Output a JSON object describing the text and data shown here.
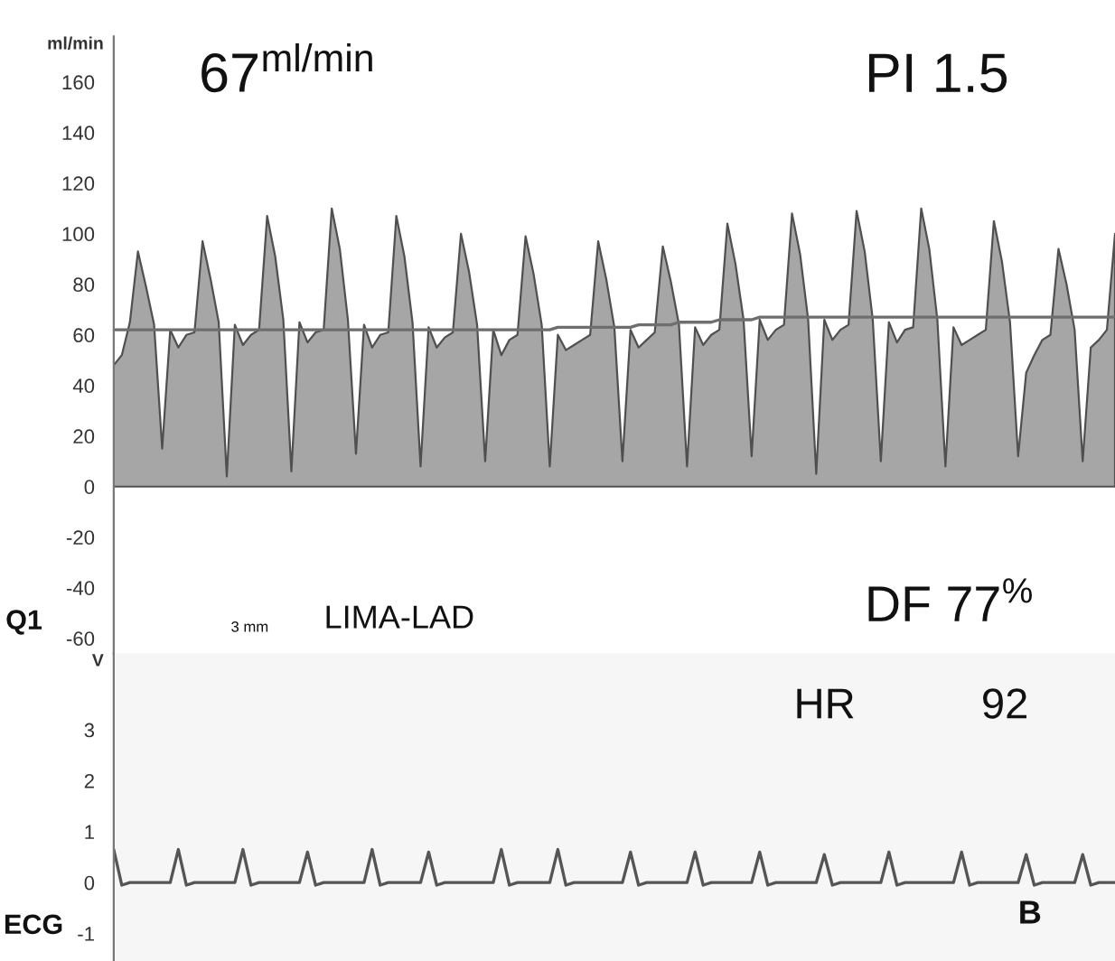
{
  "chart_data": [
    {
      "type": "area",
      "ylabel": "ml/min",
      "annotations": [
        "67$^{ml/min}$",
        "PI 1.5",
        "Q1",
        "3 mm",
        "LIMA-LAD",
        "DF 77$^{%}$"
      ],
      "categories": [
        null,
        null,
        null,
        null,
        null,
        null,
        null,
        null,
        null,
        null,
        null,
        null,
        null,
        null,
        null,
        null,
        null,
        null,
        null,
        null,
        null,
        null,
        null,
        null,
        null,
        null,
        null,
        null,
        null,
        null,
        null,
        null,
        null,
        null,
        null,
        null,
        null,
        null,
        null,
        null,
        null,
        null,
        null,
        null,
        null,
        null,
        null,
        null,
        null,
        null,
        null,
        null,
        null,
        null,
        null,
        null,
        null,
        null,
        null,
        null,
        null,
        null,
        null,
        null,
        null,
        null,
        null,
        null,
        null,
        null,
        null,
        null,
        null,
        null,
        null,
        null,
        null,
        null,
        null,
        null,
        null,
        null,
        null,
        null,
        null,
        null,
        null,
        null,
        null,
        null,
        null,
        null,
        null,
        null,
        null,
        null,
        null,
        null,
        null,
        null,
        null,
        null,
        null,
        null,
        null,
        null,
        null,
        null,
        null,
        null,
        null,
        null,
        null,
        null,
        null,
        null,
        null,
        null,
        null,
        null,
        null,
        null,
        null,
        null,
        null
      ],
      "ylim": [
        -66,
        178
      ],
      "yticks": [
        -60,
        -40,
        -20,
        0,
        20,
        40,
        60,
        80,
        100,
        120,
        140,
        160
      ],
      "tick_labels": "y",
      "grid": false,
      "legend": false,
      "series": [
        {
          "color": "#a6a6a6",
          "values": [
            48,
            52,
            65,
            93,
            79,
            64,
            15,
            62,
            55,
            60,
            61,
            97,
            82,
            65,
            4,
            64,
            56,
            60,
            62,
            107,
            91,
            66,
            6,
            65,
            57,
            61,
            62,
            110,
            94,
            66,
            13,
            64,
            55,
            60,
            61,
            107,
            91,
            65,
            8,
            63,
            55,
            59,
            61,
            100,
            85,
            64,
            10,
            62,
            52,
            58,
            60,
            99,
            84,
            64,
            8,
            60,
            54,
            56,
            58,
            60,
            97,
            82,
            63,
            10,
            62,
            55,
            58,
            61,
            95,
            81,
            64,
            8,
            63,
            56,
            60,
            62,
            104,
            88,
            66,
            12,
            66,
            58,
            62,
            64,
            108,
            92,
            66,
            5,
            66,
            58,
            62,
            64,
            109,
            93,
            66,
            10,
            65,
            57,
            62,
            63,
            110,
            94,
            66,
            8,
            63,
            56,
            58,
            60,
            62,
            105,
            89,
            65,
            12,
            45,
            52,
            58,
            60,
            94,
            80,
            62,
            10,
            55,
            58,
            62,
            100
          ]
        },
        {
          "type": "line",
          "color": "#6e6e6e",
          "values": [
            62,
            62,
            62,
            62,
            62,
            62,
            62,
            62,
            62,
            62,
            62,
            62,
            62,
            62,
            62,
            62,
            62,
            62,
            62,
            62,
            62,
            62,
            62,
            62,
            62,
            62,
            62,
            62,
            62,
            62,
            62,
            62,
            62,
            62,
            62,
            62,
            62,
            62,
            62,
            62,
            62,
            62,
            62,
            62,
            62,
            62,
            62,
            62,
            62,
            62,
            62,
            62,
            62,
            62,
            62,
            63,
            63,
            63,
            63,
            63,
            63,
            63,
            63,
            63,
            63,
            64,
            64,
            64,
            64,
            64,
            65,
            65,
            65,
            65,
            65,
            66,
            66,
            66,
            66,
            66,
            67,
            67,
            67,
            67,
            67,
            67,
            67,
            67,
            67,
            67,
            67,
            67,
            67,
            67,
            67,
            67,
            67,
            67,
            67,
            67,
            67,
            67,
            67,
            67,
            67,
            67,
            67,
            67,
            67,
            67,
            67,
            67,
            67,
            67,
            67,
            67,
            67,
            67,
            67,
            67,
            67,
            67,
            67,
            67,
            67
          ]
        }
      ]
    },
    {
      "type": "line",
      "ylabel": "V",
      "annotations": [
        "HR",
        "92",
        "ECG",
        "B"
      ],
      "categories": [
        null,
        null,
        null,
        null,
        null,
        null,
        null,
        null,
        null,
        null,
        null,
        null,
        null,
        null,
        null,
        null,
        null,
        null,
        null,
        null,
        null,
        null,
        null,
        null,
        null,
        null,
        null,
        null,
        null,
        null,
        null,
        null,
        null,
        null,
        null,
        null,
        null,
        null,
        null,
        null,
        null,
        null,
        null,
        null,
        null,
        null,
        null,
        null,
        null,
        null,
        null,
        null,
        null,
        null,
        null,
        null,
        null,
        null,
        null,
        null,
        null,
        null,
        null,
        null,
        null,
        null,
        null,
        null,
        null,
        null,
        null,
        null,
        null,
        null,
        null,
        null,
        null,
        null,
        null,
        null,
        null,
        null,
        null,
        null,
        null,
        null,
        null,
        null,
        null,
        null,
        null,
        null,
        null,
        null,
        null,
        null,
        null,
        null,
        null,
        null,
        null,
        null,
        null,
        null,
        null,
        null,
        null,
        null,
        null,
        null,
        null,
        null,
        null,
        null,
        null,
        null,
        null,
        null,
        null,
        null,
        null,
        null,
        null,
        null,
        null
      ],
      "ylim": [
        -1.54,
        4.5
      ],
      "yticks": [
        -1,
        0,
        1,
        2,
        3
      ],
      "tick_labels": "y",
      "grid": false,
      "legend": false,
      "series": [
        {
          "color": "#555555",
          "values": [
            0.65,
            -0.05,
            0,
            0,
            0,
            0,
            0,
            0,
            0.65,
            -0.05,
            0,
            0,
            0,
            0,
            0,
            0,
            0.65,
            -0.05,
            0,
            0,
            0,
            0,
            0,
            0,
            0.6,
            -0.05,
            0,
            0,
            0,
            0,
            0,
            0,
            0.65,
            -0.05,
            0,
            0,
            0,
            0,
            0,
            0.6,
            -0.05,
            0,
            0,
            0,
            0,
            0,
            0,
            0,
            0.65,
            -0.05,
            0,
            0,
            0,
            0,
            0,
            0.65,
            -0.05,
            0,
            0,
            0,
            0,
            0,
            0,
            0,
            0.6,
            -0.05,
            0,
            0,
            0,
            0,
            0,
            0,
            0.6,
            -0.05,
            0,
            0,
            0,
            0,
            0,
            0,
            0.6,
            -0.05,
            0,
            0,
            0,
            0,
            0,
            0,
            0.55,
            -0.05,
            0,
            0,
            0,
            0,
            0,
            0,
            0.6,
            -0.05,
            0,
            0,
            0,
            0,
            0,
            0,
            0,
            0.6,
            -0.05,
            0,
            0,
            0,
            0,
            0,
            0,
            0.55,
            -0.05,
            0,
            0,
            0,
            0,
            0,
            0.55,
            -0.05,
            0,
            0,
            0
          ]
        }
      ]
    }
  ]
}
